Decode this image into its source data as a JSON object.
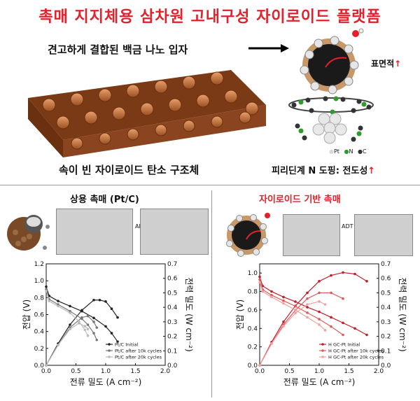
{
  "title": "촉매 지지체용 삼차원 고내구성 자이로이드 플랫폼",
  "top": {
    "particle_caption": "견고하게 결합된 백금 나노 입자",
    "surface_label": "표면적",
    "structure_caption": "속이 빈 자이로이드 탄소 구조체",
    "doping_caption": "피리딘계 N 도핑: 전도성",
    "atom_legend": [
      {
        "label": "Pt",
        "color": "#d9d9d9"
      },
      {
        "label": "N",
        "color": "#2e9b2e"
      },
      {
        "label": "C",
        "color": "#333333"
      }
    ],
    "arrow_up": "↑"
  },
  "left_panel": {
    "title": "상용 촉매 (Pt/C)",
    "adt_label": "ADT"
  },
  "right_panel": {
    "title": "자이로이드 기반 촉매",
    "adt_label": "ADT"
  },
  "colors": {
    "title_red": "#e4202a",
    "copper": "#c0703c",
    "black_series": "#222222",
    "red_series": "#d62a2a"
  },
  "chart_data": [
    {
      "type": "line",
      "xlabel": "전류 밀도 (A cm⁻²)",
      "ylabel": "전압 (V)",
      "y2label": "전력 밀도 (W cm⁻²)",
      "xlim": [
        0,
        2.0
      ],
      "ylim": [
        0,
        1.2
      ],
      "y2lim": [
        0,
        0.7
      ],
      "xticks": [
        "0.0",
        "0.5",
        "1.0",
        "1.5",
        "2.0"
      ],
      "yticks": [
        "0.0",
        "0.2",
        "0.4",
        "0.6",
        "0.8",
        "1.0",
        "1.2"
      ],
      "y2ticks": [
        "0.0",
        "0.1",
        "0.2",
        "0.3",
        "0.4",
        "0.5",
        "0.6",
        "0.7"
      ],
      "legend_position": "bottom-right",
      "series": [
        {
          "name": "Pt/C Initial",
          "color": "#222222",
          "voltage": [
            [
              0.0,
              0.93
            ],
            [
              0.05,
              0.82
            ],
            [
              0.2,
              0.76
            ],
            [
              0.4,
              0.7
            ],
            [
              0.6,
              0.64
            ],
            [
              0.8,
              0.56
            ],
            [
              1.0,
              0.46
            ],
            [
              1.1,
              0.38
            ],
            [
              1.2,
              0.28
            ]
          ],
          "power": [
            [
              0.0,
              0.0
            ],
            [
              0.2,
              0.15
            ],
            [
              0.4,
              0.28
            ],
            [
              0.6,
              0.38
            ],
            [
              0.8,
              0.45
            ],
            [
              0.9,
              0.45
            ],
            [
              1.0,
              0.44
            ],
            [
              1.1,
              0.39
            ],
            [
              1.2,
              0.33
            ]
          ]
        },
        {
          "name": "Pt/C after 10k cycles",
          "color": "#777777",
          "voltage": [
            [
              0.0,
              0.9
            ],
            [
              0.05,
              0.78
            ],
            [
              0.2,
              0.72
            ],
            [
              0.4,
              0.64
            ],
            [
              0.6,
              0.55
            ],
            [
              0.7,
              0.48
            ],
            [
              0.8,
              0.38
            ],
            [
              0.85,
              0.3
            ]
          ],
          "power": [
            [
              0.0,
              0.0
            ],
            [
              0.2,
              0.14
            ],
            [
              0.4,
              0.26
            ],
            [
              0.6,
              0.33
            ],
            [
              0.7,
              0.34
            ],
            [
              0.8,
              0.3
            ],
            [
              0.85,
              0.26
            ]
          ]
        },
        {
          "name": "Pt/C after 20k cycles",
          "color": "#bbbbbb",
          "voltage": [
            [
              0.0,
              0.88
            ],
            [
              0.05,
              0.76
            ],
            [
              0.2,
              0.7
            ],
            [
              0.4,
              0.62
            ],
            [
              0.55,
              0.52
            ],
            [
              0.65,
              0.42
            ],
            [
              0.7,
              0.35
            ]
          ],
          "power": [
            [
              0.0,
              0.0
            ],
            [
              0.2,
              0.14
            ],
            [
              0.4,
              0.25
            ],
            [
              0.55,
              0.29
            ],
            [
              0.65,
              0.27
            ],
            [
              0.7,
              0.25
            ]
          ]
        }
      ]
    },
    {
      "type": "line",
      "xlabel": "전류 밀도 (A cm⁻²)",
      "ylabel": "전압 (V)",
      "y2label": "전력 밀도 (W cm⁻²)",
      "xlim": [
        0,
        2.0
      ],
      "ylim": [
        0,
        1.1
      ],
      "y2lim": [
        0,
        0.7
      ],
      "xticks": [
        "0.0",
        "0.5",
        "1.0",
        "1.5",
        "2.0"
      ],
      "yticks": [
        "0.0",
        "0.2",
        "0.4",
        "0.6",
        "0.8",
        "1.0"
      ],
      "y2ticks": [
        "0.0",
        "0.1",
        "0.2",
        "0.3",
        "0.4",
        "0.5",
        "0.6",
        "0.7"
      ],
      "legend_position": "bottom-right",
      "series": [
        {
          "name": "H GC-Pt Initial",
          "color": "#c0202a",
          "voltage": [
            [
              0.0,
              0.96
            ],
            [
              0.05,
              0.86
            ],
            [
              0.2,
              0.8
            ],
            [
              0.4,
              0.74
            ],
            [
              0.6,
              0.69
            ],
            [
              0.8,
              0.63
            ],
            [
              1.0,
              0.58
            ],
            [
              1.2,
              0.52
            ],
            [
              1.4,
              0.46
            ],
            [
              1.6,
              0.4
            ],
            [
              1.8,
              0.33
            ]
          ],
          "power": [
            [
              0.0,
              0.0
            ],
            [
              0.2,
              0.16
            ],
            [
              0.4,
              0.3
            ],
            [
              0.6,
              0.41
            ],
            [
              0.8,
              0.5
            ],
            [
              1.0,
              0.58
            ],
            [
              1.2,
              0.62
            ],
            [
              1.4,
              0.64
            ],
            [
              1.6,
              0.63
            ],
            [
              1.8,
              0.58
            ]
          ]
        },
        {
          "name": "H GC-Pt after 10k cycles",
          "color": "#e05a5a",
          "voltage": [
            [
              0.0,
              0.93
            ],
            [
              0.05,
              0.82
            ],
            [
              0.2,
              0.76
            ],
            [
              0.4,
              0.7
            ],
            [
              0.6,
              0.64
            ],
            [
              0.8,
              0.57
            ],
            [
              1.0,
              0.5
            ],
            [
              1.2,
              0.42
            ],
            [
              1.4,
              0.33
            ]
          ],
          "power": [
            [
              0.0,
              0.0
            ],
            [
              0.2,
              0.15
            ],
            [
              0.4,
              0.28
            ],
            [
              0.6,
              0.38
            ],
            [
              0.8,
              0.46
            ],
            [
              1.0,
              0.5
            ],
            [
              1.2,
              0.5
            ],
            [
              1.4,
              0.46
            ]
          ]
        },
        {
          "name": "H GC-Pt after 20k cycles",
          "color": "#f2a0a0",
          "voltage": [
            [
              0.0,
              0.9
            ],
            [
              0.05,
              0.8
            ],
            [
              0.2,
              0.74
            ],
            [
              0.4,
              0.67
            ],
            [
              0.6,
              0.6
            ],
            [
              0.8,
              0.52
            ],
            [
              1.0,
              0.44
            ],
            [
              1.1,
              0.38
            ]
          ],
          "power": [
            [
              0.0,
              0.0
            ],
            [
              0.2,
              0.15
            ],
            [
              0.4,
              0.27
            ],
            [
              0.6,
              0.36
            ],
            [
              0.8,
              0.42
            ],
            [
              1.0,
              0.44
            ],
            [
              1.1,
              0.42
            ]
          ]
        }
      ]
    }
  ]
}
